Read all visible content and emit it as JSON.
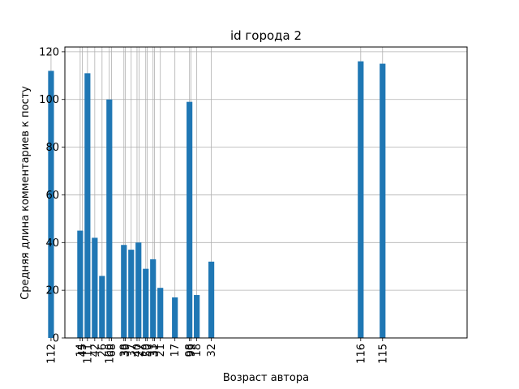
{
  "chart_data": {
    "type": "bar",
    "title": "id города 2",
    "xlabel": "Возраст автора",
    "ylabel": "Средняя длина комментариев к посту",
    "xlim": [
      8.8,
      119.2
    ],
    "ylim": [
      0,
      122
    ],
    "yticks": [
      0,
      20,
      40,
      60,
      80,
      100,
      120
    ],
    "grid": true,
    "bar_color": "#1f77b4",
    "bar_width": 1.6,
    "bars": [
      {
        "x": 5,
        "value": 112
      },
      {
        "x": 13,
        "value": 45
      },
      {
        "x": 15,
        "value": 111
      },
      {
        "x": 17,
        "value": 42
      },
      {
        "x": 19,
        "value": 26
      },
      {
        "x": 21,
        "value": 100
      },
      {
        "x": 25,
        "value": 39
      },
      {
        "x": 27,
        "value": 37
      },
      {
        "x": 29,
        "value": 40
      },
      {
        "x": 31,
        "value": 29
      },
      {
        "x": 33,
        "value": 33
      },
      {
        "x": 35,
        "value": 21
      },
      {
        "x": 39,
        "value": 17
      },
      {
        "x": 43,
        "value": 99
      },
      {
        "x": 45,
        "value": 18
      },
      {
        "x": 49,
        "value": 32
      },
      {
        "x": 90,
        "value": 116
      },
      {
        "x": 96,
        "value": 115
      }
    ],
    "xticks": [
      {
        "pos": 5,
        "label": "112"
      },
      {
        "pos": 13,
        "label": "14"
      },
      {
        "pos": 13.6,
        "label": "45"
      },
      {
        "pos": 15,
        "label": "111"
      },
      {
        "pos": 17,
        "label": "42"
      },
      {
        "pos": 19,
        "label": "26"
      },
      {
        "pos": 21,
        "label": "100"
      },
      {
        "pos": 21.6,
        "label": "68"
      },
      {
        "pos": 25,
        "label": "38"
      },
      {
        "pos": 25.4,
        "label": "39"
      },
      {
        "pos": 27,
        "label": "37"
      },
      {
        "pos": 28.6,
        "label": "40"
      },
      {
        "pos": 29.2,
        "label": "27"
      },
      {
        "pos": 31,
        "label": "29"
      },
      {
        "pos": 31.4,
        "label": "50"
      },
      {
        "pos": 33,
        "label": "33"
      },
      {
        "pos": 33.4,
        "label": "31"
      },
      {
        "pos": 35,
        "label": "21"
      },
      {
        "pos": 39,
        "label": "17"
      },
      {
        "pos": 43,
        "label": "98"
      },
      {
        "pos": 43.4,
        "label": "99"
      },
      {
        "pos": 45,
        "label": "18"
      },
      {
        "pos": 49,
        "label": "32"
      },
      {
        "pos": 90,
        "label": "116"
      },
      {
        "pos": 96,
        "label": "115"
      }
    ]
  }
}
